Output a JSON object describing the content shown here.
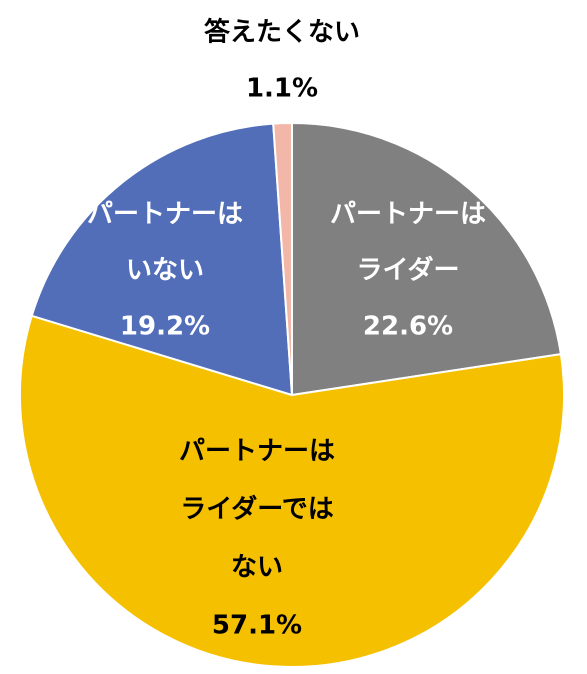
{
  "chart_data": {
    "type": "pie",
    "start_angle_deg": 0,
    "direction": "clockwise",
    "slices": [
      {
        "label_lines": [
          "パートナーは",
          "ライダー"
        ],
        "value": 22.6,
        "value_label": "22.6%",
        "color": "#808080",
        "label_color": "#ffffff"
      },
      {
        "label_lines": [
          "パートナーは",
          "ライダーでは",
          "ない"
        ],
        "value": 57.1,
        "value_label": "57.1%",
        "color": "#f5c000",
        "label_color": "#000000"
      },
      {
        "label_lines": [
          "パートナーは",
          "いない"
        ],
        "value": 19.2,
        "value_label": "19.2%",
        "color": "#526eb8",
        "label_color": "#ffffff"
      },
      {
        "label_lines": [
          "答えたくない"
        ],
        "value": 1.1,
        "value_label": "1.1%",
        "color": "#f2b7a8",
        "label_color": "#000000"
      }
    ]
  }
}
